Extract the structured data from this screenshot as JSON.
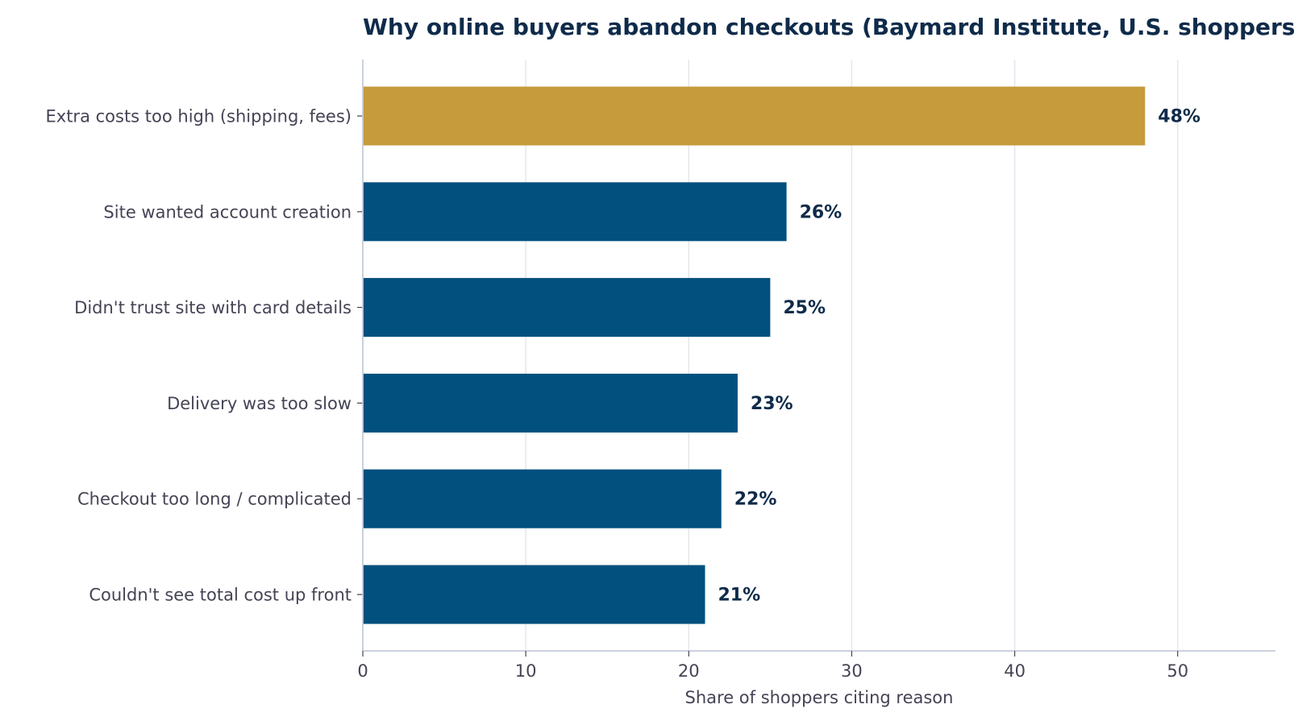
{
  "chart_data": {
    "type": "bar",
    "orientation": "horizontal",
    "title": "Why online buyers abandon checkouts (Baymard Institute, U.S. shoppers)",
    "xlabel": "Share of shoppers citing reason",
    "ylabel": "",
    "categories": [
      "Extra costs too high (shipping, fees)",
      "Site wanted account creation",
      "Didn't trust site with card details",
      "Delivery was too slow",
      "Checkout too long / complicated",
      "Couldn't see total cost up front"
    ],
    "values": [
      48,
      26,
      25,
      23,
      22,
      21
    ],
    "value_labels": [
      "48%",
      "26%",
      "25%",
      "23%",
      "22%",
      "21%"
    ],
    "xlim": [
      0,
      56
    ],
    "xticks": [
      0,
      10,
      20,
      30,
      40,
      50
    ],
    "xtick_labels": [
      "0",
      "10",
      "20",
      "30",
      "40",
      "50"
    ],
    "grid": "vertical",
    "legend": "none",
    "colors": {
      "highlight": "#c59b3c",
      "bar": "#01507e",
      "title": "#0f2b4a",
      "value_label": "#0f2b4a",
      "text": "#444455",
      "grid": "#e3e7ee",
      "axis": "#c4ccd8"
    },
    "highlight_index": 0
  }
}
